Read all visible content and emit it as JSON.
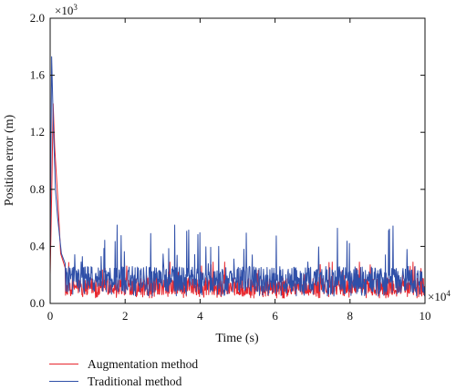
{
  "chart_data": {
    "type": "line",
    "xlabel": "Time (s)",
    "ylabel": "Position error (m)",
    "x_multiplier": "×10",
    "x_multiplier_exp": "4",
    "y_multiplier": "×10",
    "y_multiplier_exp": "3",
    "xlim": [
      0,
      10
    ],
    "ylim": [
      0,
      2.0
    ],
    "xticks": [
      0,
      2,
      4,
      6,
      8,
      10
    ],
    "yticks": [
      0.0,
      0.4,
      0.8,
      1.2,
      1.6,
      2.0
    ],
    "xtick_labels": [
      "0",
      "2",
      "4",
      "6",
      "8",
      "10"
    ],
    "ytick_labels": [
      "0.0",
      "0.4",
      "0.8",
      "1.2",
      "1.6",
      "2.0"
    ],
    "grid": false,
    "legend_position": "bottom-left, outside plot",
    "series": [
      {
        "name": "Augmentation method",
        "color": "#e8262d",
        "peaks": [
          [
            0.0,
            0.2
          ],
          [
            0.05,
            0.9
          ],
          [
            0.08,
            1.4
          ],
          [
            0.12,
            1.1
          ],
          [
            0.2,
            0.75
          ],
          [
            0.28,
            0.35
          ],
          [
            0.4,
            0.25
          ]
        ],
        "baseline": 0.12,
        "spread": 0.06,
        "max_spike": 0.29
      },
      {
        "name": "Traditional method",
        "color": "#2f4fa8",
        "peaks": [
          [
            0.0,
            0.3
          ],
          [
            0.04,
            1.73
          ],
          [
            0.08,
            1.3
          ],
          [
            0.14,
            0.8
          ],
          [
            0.2,
            0.6
          ],
          [
            0.3,
            0.35
          ],
          [
            0.4,
            0.28
          ]
        ],
        "baseline": 0.17,
        "spread": 0.09,
        "max_spike": 0.55
      }
    ]
  }
}
